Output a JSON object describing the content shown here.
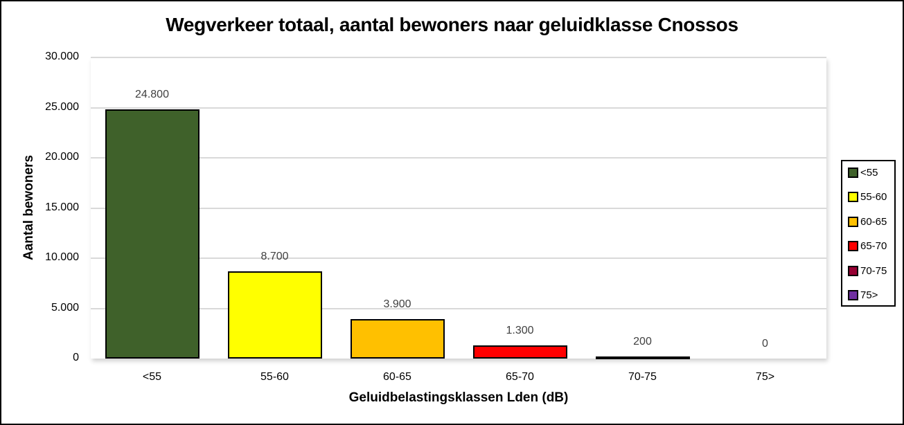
{
  "chart_data": {
    "type": "bar",
    "title": "Wegverkeer totaal, aantal bewoners  naar geluidklasse Cnossos",
    "xlabel": "Geluidbelastingsklassen Lden (dB)",
    "ylabel": "Aantal bewoners",
    "categories": [
      "<55",
      "55-60",
      "60-65",
      "65-70",
      "70-75",
      "75>"
    ],
    "values": [
      24800,
      8700,
      3900,
      1300,
      200,
      0
    ],
    "data_labels": [
      "24.800",
      "8.700",
      "3.900",
      "1.300",
      "200",
      "0"
    ],
    "colors": [
      "#3f612a",
      "#ffff00",
      "#ffc000",
      "#ff0000",
      "#960032",
      "#7030a0"
    ],
    "ylim": [
      0,
      30000
    ],
    "yticks": [
      0,
      5000,
      10000,
      15000,
      20000,
      25000,
      30000
    ],
    "ytick_labels": [
      "0",
      "5.000",
      "10.000",
      "15.000",
      "20.000",
      "25.000",
      "30.000"
    ],
    "grid": true,
    "legend_position": "right",
    "legend": [
      "<55",
      "55-60",
      "60-65",
      "65-70",
      "70-75",
      "75>"
    ]
  }
}
